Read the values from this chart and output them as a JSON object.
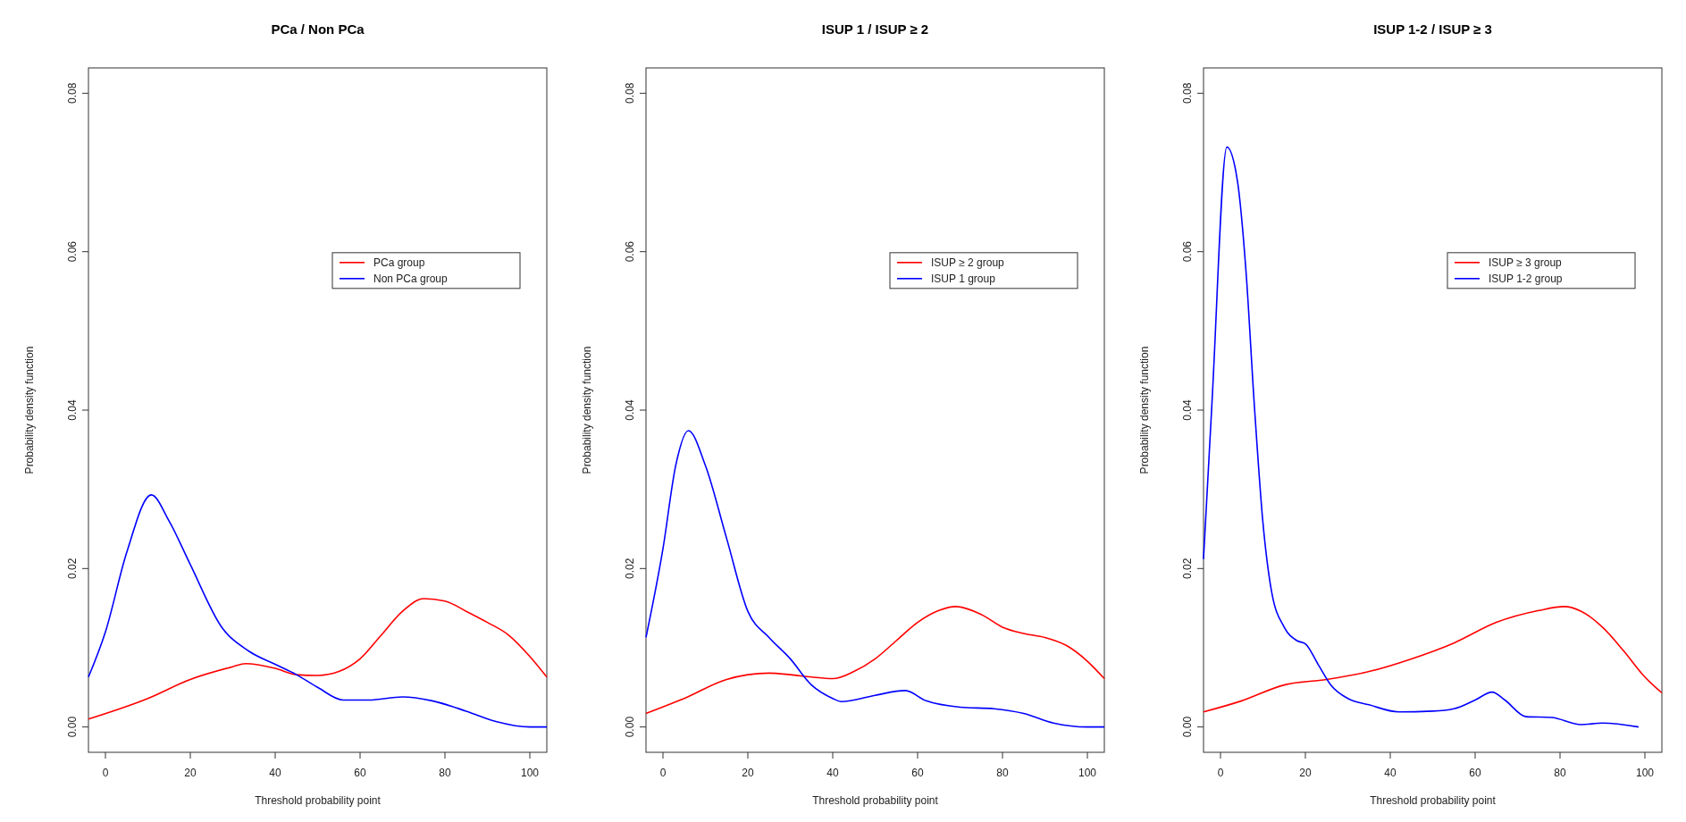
{
  "chart_data": [
    {
      "type": "line",
      "title": "PCa / Non PCa",
      "xlabel": "Threshold probability point",
      "ylabel": "Probability density function",
      "xlim": [
        -4,
        104
      ],
      "ylim": [
        -0.0032,
        0.0832
      ],
      "xticks": [
        0,
        20,
        40,
        60,
        80,
        100
      ],
      "yticks": [
        {
          "value": 0,
          "label": "0.00"
        },
        {
          "value": 0.02,
          "label": "0.02"
        },
        {
          "value": 0.04,
          "label": "0.04"
        },
        {
          "value": 0.06,
          "label": "0.06"
        },
        {
          "value": 0.08,
          "label": "0.08"
        }
      ],
      "grid": false,
      "legend": "right",
      "line_style": "solid",
      "series": [
        {
          "name": "PCa group",
          "color": "#ff0000",
          "x": [
            -4,
            10,
            20,
            30,
            33,
            40,
            45,
            50,
            55,
            60,
            65,
            70,
            75,
            80,
            85,
            90,
            95,
            100,
            104
          ],
          "values": [
            0.001,
            0.0036,
            0.006,
            0.0076,
            0.008,
            0.0074,
            0.0066,
            0.0065,
            0.007,
            0.0086,
            0.0116,
            0.0146,
            0.0162,
            0.0159,
            0.0146,
            0.0132,
            0.0116,
            0.0089,
            0.0063
          ]
        },
        {
          "name": "Non PCa group",
          "color": "#0000ff",
          "x": [
            -4,
            0,
            5,
            10.8,
            15,
            20,
            27.4,
            33.7,
            40,
            45,
            50,
            56,
            62,
            70,
            77,
            85,
            92,
            100,
            104
          ],
          "values": [
            0.0063,
            0.012,
            0.022,
            0.0293,
            0.026,
            0.0205,
            0.0126,
            0.0096,
            0.0079,
            0.0066,
            0.005,
            0.0034,
            0.0034,
            0.0038,
            0.0033,
            0.002,
            0.0007,
            0,
            0
          ]
        }
      ]
    },
    {
      "type": "line",
      "title": "ISUP 1 / ISUP ≥ 2",
      "xlabel": "Threshold probability point",
      "ylabel": "Probability density function",
      "xlim": [
        -4,
        104
      ],
      "ylim": [
        -0.0032,
        0.0832
      ],
      "xticks": [
        0,
        20,
        40,
        60,
        80,
        100
      ],
      "yticks": [
        {
          "value": 0,
          "label": "0.00"
        },
        {
          "value": 0.02,
          "label": "0.02"
        },
        {
          "value": 0.04,
          "label": "0.04"
        },
        {
          "value": 0.06,
          "label": "0.06"
        },
        {
          "value": 0.08,
          "label": "0.08"
        }
      ],
      "grid": false,
      "legend": "right",
      "line_style": "solid",
      "series": [
        {
          "name": "ISUP ≥ 2 group",
          "color": "#ff0000",
          "x": [
            -4,
            5,
            15,
            25,
            30,
            35,
            40,
            45,
            50,
            55,
            60,
            65,
            69,
            75,
            80,
            85,
            90,
            95,
            100,
            104
          ],
          "values": [
            0.0017,
            0.0036,
            0.006,
            0.0068,
            0.0066,
            0.0063,
            0.0061,
            0.007,
            0.0086,
            0.0109,
            0.0132,
            0.0147,
            0.0152,
            0.0142,
            0.0126,
            0.0118,
            0.0113,
            0.0103,
            0.0083,
            0.0061
          ]
        },
        {
          "name": "ISUP 1 group",
          "color": "#0000ff",
          "x": [
            -4,
            0,
            3,
            6,
            10,
            15,
            20,
            25,
            30,
            35,
            40,
            42,
            50,
            57,
            62,
            70,
            78,
            85,
            92,
            100,
            104
          ],
          "values": [
            0.0113,
            0.0225,
            0.033,
            0.0374,
            0.033,
            0.0238,
            0.0146,
            0.0113,
            0.0086,
            0.0053,
            0.0036,
            0.0032,
            0.004,
            0.0046,
            0.0033,
            0.0025,
            0.0023,
            0.0017,
            0.0005,
            0,
            0
          ]
        }
      ]
    },
    {
      "type": "line",
      "title": "ISUP 1-2 / ISUP ≥ 3",
      "xlabel": "Threshold probability point",
      "ylabel": "Probability density function",
      "xlim": [
        -4,
        104
      ],
      "ylim": [
        -0.0032,
        0.0832
      ],
      "xticks": [
        0,
        20,
        40,
        60,
        80,
        100
      ],
      "yticks": [
        {
          "value": 0,
          "label": "0.00"
        },
        {
          "value": 0.02,
          "label": "0.02"
        },
        {
          "value": 0.04,
          "label": "0.04"
        },
        {
          "value": 0.06,
          "label": "0.06"
        },
        {
          "value": 0.08,
          "label": "0.08"
        }
      ],
      "grid": false,
      "legend": "right",
      "line_style": "solid",
      "series": [
        {
          "name": "ISUP ≥ 3 group",
          "color": "#ff0000",
          "x": [
            -4,
            5,
            15,
            25,
            35,
            45,
            55,
            65,
            75,
            81,
            85,
            90,
            95,
            100,
            104
          ],
          "values": [
            0.0019,
            0.0033,
            0.0053,
            0.006,
            0.007,
            0.0086,
            0.0106,
            0.0132,
            0.0147,
            0.0152,
            0.0146,
            0.0126,
            0.0096,
            0.0063,
            0.0043
          ]
        },
        {
          "name": "ISUP 1-2 group",
          "color": "#0000ff",
          "x": [
            -4,
            -2,
            1.5,
            4,
            6,
            8,
            10,
            12,
            15,
            18,
            20,
            23,
            26,
            30,
            35,
            42,
            50,
            55,
            60,
            64,
            67,
            72,
            78,
            85,
            90,
            98.5
          ],
          "values": [
            0.0212,
            0.041,
            0.0732,
            0.0689,
            0.0576,
            0.0404,
            0.0258,
            0.0172,
            0.0126,
            0.0109,
            0.0105,
            0.0079,
            0.0053,
            0.0036,
            0.0028,
            0.0019,
            0.002,
            0.0023,
            0.0034,
            0.0044,
            0.0034,
            0.0013,
            0.0012,
            0.0003,
            0.0005,
            0
          ]
        }
      ]
    }
  ]
}
